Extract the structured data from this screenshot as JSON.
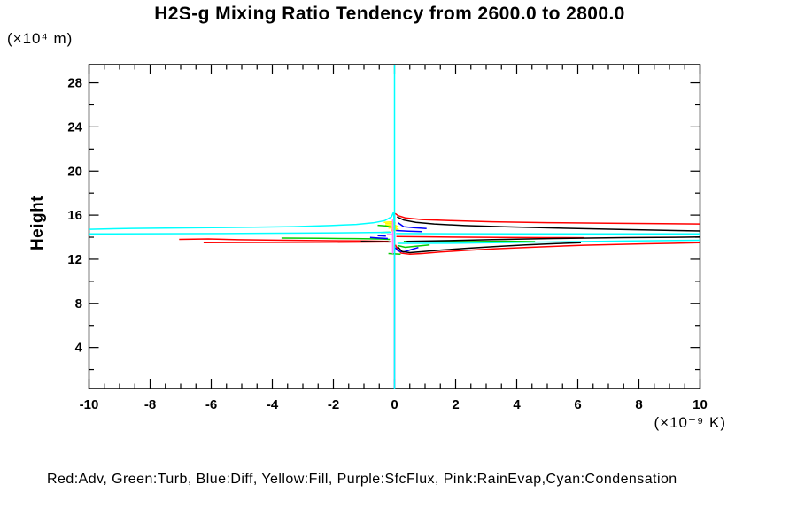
{
  "title": "H2S-g Mixing Ratio Tendency from 2600.0 to 2800.0",
  "y_axis_unit": "(×10⁴ m)",
  "x_axis_unit": "(×10⁻⁹ K)",
  "y_axis_title": "Height",
  "legend_text": "Red:Adv, Green:Turb, Blue:Diff, Yellow:Fill, Purple:SfcFlux, Pink:RainEvap,Cyan:Condensation",
  "chart_data": {
    "type": "line",
    "title": "H2S-g Mixing Ratio Tendency from 2600.0 to 2800.0",
    "xlabel": "(×10⁻⁹ K)",
    "ylabel": "Height (×10⁴ m)",
    "xlim": [
      -10,
      10
    ],
    "ylim": [
      0.28,
      29.65
    ],
    "grid": false,
    "frame": "box",
    "x_major_ticks": [
      -10,
      -8,
      -6,
      -4,
      -2,
      0,
      2,
      4,
      6,
      8,
      10
    ],
    "x_tick_labels": [
      "-10",
      "-8",
      "-6",
      "-4",
      "-2",
      "0",
      "2",
      "4",
      "6",
      "8",
      "10"
    ],
    "x_minor_step": 0.5,
    "y_major_ticks": [
      4,
      8,
      12,
      16,
      20,
      24,
      28
    ],
    "y_tick_labels": [
      "4",
      "8",
      "12",
      "16",
      "20",
      "24",
      "28"
    ],
    "y_minor_step": 2,
    "legend_position": "bottom",
    "series": [
      {
        "id": "fill",
        "label": "Fill",
        "color": "#ffff00",
        "paths": [
          [
            [
              -0.35,
              15.35
            ],
            [
              -0.08,
              15.4
            ],
            [
              0.03,
              15.28
            ],
            [
              -0.3,
              15.22
            ]
          ],
          [
            [
              -0.3,
              15.08
            ],
            [
              -0.02,
              15.14
            ],
            [
              0.08,
              15.0
            ],
            [
              -0.25,
              14.95
            ]
          ],
          [
            [
              -0.2,
              14.82
            ],
            [
              0.02,
              14.88
            ],
            [
              0.1,
              14.75
            ],
            [
              -0.12,
              14.7
            ]
          ],
          [
            [
              -0.12,
              14.58
            ],
            [
              0.06,
              14.62
            ]
          ]
        ]
      },
      {
        "id": "sfcflux",
        "label": "SfcFlux",
        "color": "#9900cc",
        "paths": [
          [
            [
              0,
              0.28
            ],
            [
              0,
              16.1
            ]
          ]
        ]
      },
      {
        "id": "adv",
        "label": "Adv",
        "color": "#ff0000",
        "paths": [
          [
            [
              0.02,
              16.15
            ],
            [
              0.12,
              15.95
            ],
            [
              0.35,
              15.75
            ],
            [
              0.9,
              15.6
            ],
            [
              1.8,
              15.5
            ],
            [
              3.2,
              15.4
            ],
            [
              5,
              15.32
            ],
            [
              7,
              15.26
            ],
            [
              10,
              15.2
            ]
          ],
          [
            [
              -7.05,
              13.8
            ],
            [
              -6.1,
              13.84
            ],
            [
              -5.1,
              13.77
            ],
            [
              -3.6,
              13.72
            ],
            [
              -2.2,
              13.68
            ],
            [
              -1.0,
              13.66
            ],
            [
              -0.2,
              13.62
            ]
          ],
          [
            [
              -6.25,
              13.5
            ],
            [
              -4.5,
              13.52
            ],
            [
              -2.5,
              13.54
            ],
            [
              -0.8,
              13.56
            ],
            [
              -0.1,
              13.58
            ]
          ],
          [
            [
              0.06,
              14.06
            ],
            [
              1.5,
              14.02
            ],
            [
              3.5,
              13.98
            ],
            [
              5,
              13.96
            ],
            [
              6.2,
              13.95
            ]
          ],
          [
            [
              0.03,
              13.3
            ],
            [
              0.1,
              12.9
            ],
            [
              0.22,
              12.55
            ],
            [
              0.5,
              12.45
            ],
            [
              0.9,
              12.52
            ],
            [
              1.5,
              12.65
            ],
            [
              2.3,
              12.8
            ],
            [
              3.3,
              12.95
            ],
            [
              4.6,
              13.1
            ],
            [
              6.2,
              13.27
            ],
            [
              8.2,
              13.4
            ],
            [
              10,
              13.5
            ]
          ]
        ]
      },
      {
        "id": "turb",
        "label": "Turb",
        "color": "#00cc00",
        "paths": [
          [
            [
              -3.7,
              13.92
            ],
            [
              -2.4,
              13.9
            ],
            [
              -1.3,
              13.87
            ],
            [
              -0.5,
              13.84
            ],
            [
              -0.15,
              13.8
            ]
          ],
          [
            [
              0.3,
              13.62
            ],
            [
              1.3,
              13.58
            ],
            [
              2.4,
              13.6
            ],
            [
              3.6,
              13.63
            ],
            [
              4.6,
              13.6
            ]
          ],
          [
            [
              -0.55,
              15.08
            ],
            [
              -0.3,
              15.02
            ],
            [
              -0.1,
              14.92
            ]
          ],
          [
            [
              0.1,
              13.25
            ],
            [
              0.35,
              13.08
            ],
            [
              0.7,
              13.18
            ],
            [
              1.15,
              13.3
            ]
          ],
          [
            [
              -0.2,
              12.52
            ],
            [
              0.2,
              12.45
            ]
          ],
          [
            [
              -0.45,
              14.42
            ],
            [
              -0.15,
              14.45
            ]
          ]
        ]
      },
      {
        "id": "diff",
        "label": "Diff",
        "color": "#0000ff",
        "paths": [
          [
            [
              0.12,
              15.3
            ],
            [
              0.3,
              14.95
            ],
            [
              0.62,
              14.86
            ],
            [
              1.05,
              14.78
            ]
          ],
          [
            [
              0.05,
              14.6
            ],
            [
              0.45,
              14.55
            ],
            [
              0.9,
              14.5
            ]
          ],
          [
            [
              -0.8,
              13.98
            ],
            [
              -0.5,
              13.92
            ],
            [
              -0.22,
              13.88
            ]
          ],
          [
            [
              -0.55,
              14.15
            ],
            [
              -0.28,
              14.1
            ]
          ],
          [
            [
              0.02,
              13.05
            ],
            [
              0.12,
              12.75
            ],
            [
              0.3,
              12.66
            ],
            [
              0.55,
              12.88
            ],
            [
              0.78,
              13.06
            ]
          ]
        ]
      },
      {
        "id": "black",
        "label": null,
        "color": "#000000",
        "paths": [
          [
            [
              0.08,
              15.85
            ],
            [
              0.3,
              15.55
            ],
            [
              0.7,
              15.35
            ],
            [
              1.3,
              15.2
            ],
            [
              2.3,
              15.05
            ],
            [
              3.6,
              14.94
            ],
            [
              5.2,
              14.84
            ],
            [
              7.2,
              14.72
            ],
            [
              9.2,
              14.6
            ],
            [
              10,
              14.56
            ]
          ],
          [
            [
              0.4,
              13.62
            ],
            [
              1.6,
              13.68
            ],
            [
              3.2,
              13.78
            ],
            [
              5.2,
              13.88
            ],
            [
              7.5,
              13.96
            ],
            [
              9.5,
              14.0
            ],
            [
              10,
              14.02
            ]
          ],
          [
            [
              0.1,
              13.15
            ],
            [
              0.25,
              12.7
            ],
            [
              0.5,
              12.6
            ],
            [
              0.95,
              12.7
            ],
            [
              1.6,
              12.85
            ],
            [
              2.4,
              13.0
            ],
            [
              3.3,
              13.15
            ],
            [
              4.3,
              13.3
            ],
            [
              5.3,
              13.42
            ],
            [
              6.1,
              13.5
            ]
          ],
          [
            [
              -1.1,
              13.62
            ],
            [
              -0.5,
              13.59
            ],
            [
              -0.15,
              13.57
            ]
          ]
        ]
      },
      {
        "id": "rainevap",
        "label": "RainEvap",
        "color": "#ff80ff",
        "paths": [
          [
            [
              -0.06,
              12.5
            ],
            [
              -0.06,
              15.6
            ]
          ],
          [
            [
              -0.25,
              14.25
            ],
            [
              -0.06,
              14.25
            ]
          ]
        ]
      },
      {
        "id": "condensation",
        "label": "Condensation",
        "color": "#00ffff",
        "paths": [
          [
            [
              0,
              0.28
            ],
            [
              0,
              29.65
            ]
          ],
          [
            [
              -10,
              14.72
            ],
            [
              -8.6,
              14.8
            ],
            [
              -6.4,
              14.85
            ],
            [
              -4.6,
              14.9
            ],
            [
              -3.3,
              14.96
            ],
            [
              -2.1,
              15.05
            ],
            [
              -1.25,
              15.16
            ],
            [
              -0.7,
              15.3
            ],
            [
              -0.32,
              15.5
            ],
            [
              -0.1,
              15.85
            ],
            [
              -0.03,
              16.3
            ],
            [
              0,
              14.5
            ]
          ],
          [
            [
              -10,
              14.3
            ],
            [
              -5,
              14.34
            ],
            [
              -1.5,
              14.4
            ],
            [
              -0.1,
              14.44
            ]
          ],
          [
            [
              0.05,
              14.33
            ],
            [
              4,
              14.3
            ],
            [
              10,
              14.3
            ]
          ],
          [
            [
              0.1,
              13.44
            ],
            [
              2.2,
              13.46
            ],
            [
              4.5,
              13.55
            ],
            [
              7.5,
              13.65
            ],
            [
              10,
              13.72
            ]
          ]
        ]
      }
    ]
  }
}
